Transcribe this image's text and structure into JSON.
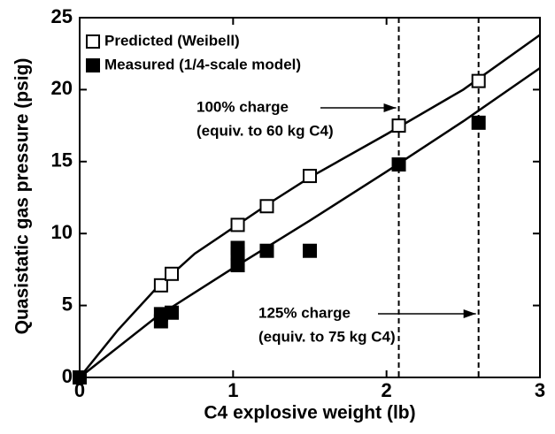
{
  "chart_data": {
    "type": "scatter",
    "xlabel": "C4 explosive weight (lb)",
    "ylabel": "Quasistatic gas pressure (psig)",
    "xlim": [
      0,
      3
    ],
    "xticks": [
      0,
      1,
      2,
      3
    ],
    "ylim": [
      0,
      25
    ],
    "yticks": [
      0,
      5,
      10,
      15,
      20,
      25
    ],
    "legend": "upper left",
    "series": [
      {
        "name": "Predicted (Weibell)",
        "marker": "open",
        "color": "#000000",
        "x": [
          0,
          0.53,
          0.6,
          1.03,
          1.22,
          1.5,
          2.08,
          2.6
        ],
        "values": [
          0,
          6.4,
          7.2,
          10.6,
          11.9,
          14.0,
          17.5,
          20.6
        ]
      },
      {
        "name": "Measured (1/4-scale model)",
        "marker": "filled",
        "color": "#000000",
        "x": [
          0,
          0.53,
          0.53,
          0.6,
          1.03,
          1.03,
          1.03,
          1.22,
          1.5,
          2.08,
          2.6
        ],
        "values": [
          0,
          3.9,
          4.4,
          4.5,
          7.8,
          8.6,
          9.0,
          8.8,
          8.8,
          14.8,
          17.7
        ]
      }
    ],
    "curves": [
      {
        "x": [
          0,
          0.25,
          0.5,
          0.75,
          1,
          1.25,
          1.5,
          2,
          2.5,
          3
        ],
        "values": [
          0,
          3.3,
          6.2,
          8.6,
          10.4,
          12.2,
          13.9,
          16.9,
          20,
          23.8
        ]
      },
      {
        "x": [
          0,
          0.5,
          1,
          1.5,
          2,
          2.5,
          3
        ],
        "values": [
          0,
          4.2,
          7.6,
          10.9,
          14.3,
          17.8,
          21.5
        ]
      }
    ],
    "reference_lines": [
      2.08,
      2.6
    ],
    "annotations": [
      {
        "lines": [
          "100% charge",
          "(equiv. to 60 kg C4)"
        ],
        "target": 0
      },
      {
        "lines": [
          "125% charge",
          "(equiv. to 75 kg C4)"
        ],
        "target": 1
      }
    ]
  }
}
